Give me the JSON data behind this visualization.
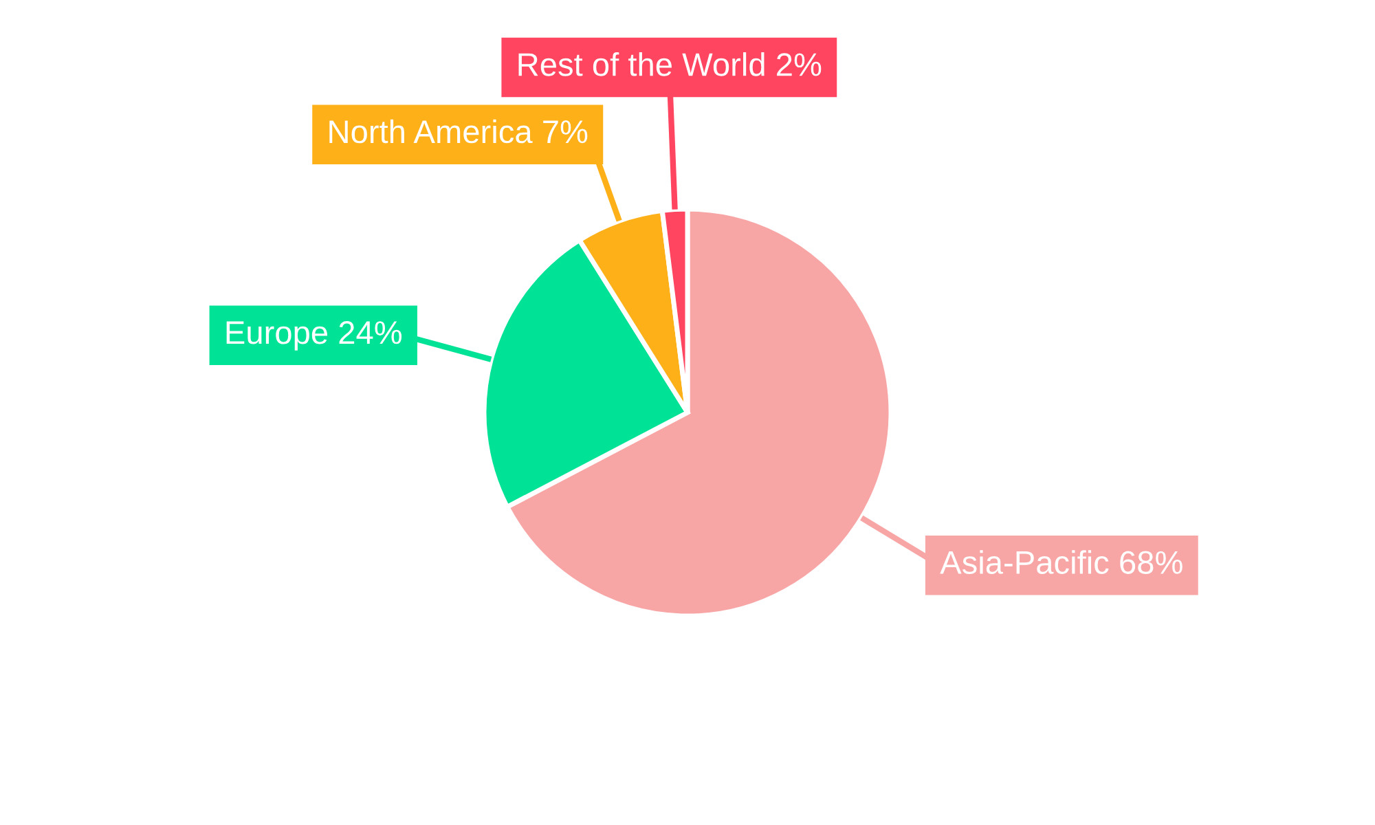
{
  "chart_data": {
    "type": "pie",
    "categories": [
      "Asia-Pacific",
      "Europe",
      "North America",
      "Rest of the World"
    ],
    "values": [
      68,
      24,
      7,
      2
    ],
    "value_labels": [
      "68%",
      "24%",
      "7%",
      "2%"
    ],
    "colors": [
      "#f8a5a5",
      "#00e396",
      "#feb019",
      "#ff4560"
    ],
    "legend": false
  }
}
